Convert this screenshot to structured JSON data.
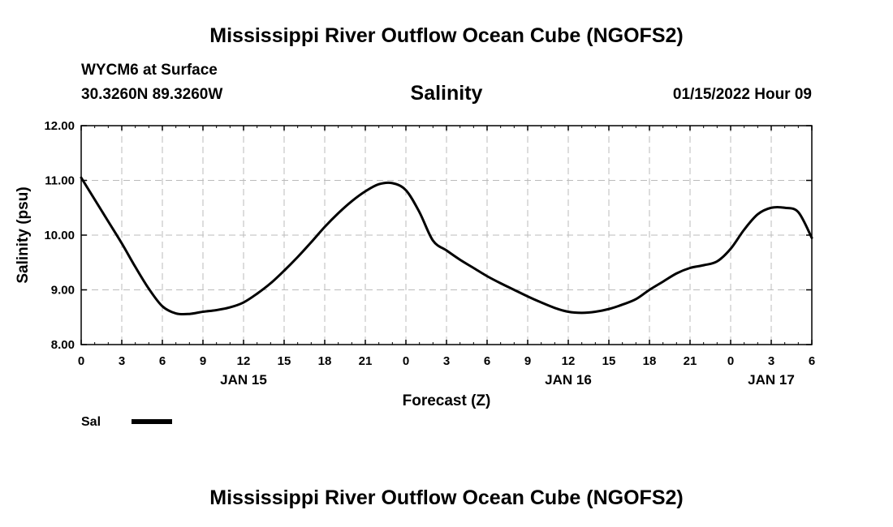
{
  "header": {
    "title": "Mississippi River Outflow Ocean Cube (NGOFS2)",
    "station": "WYCM6 at Surface",
    "coords": "30.3260N  89.3260W",
    "variable": "Salinity",
    "datetime": "01/15/2022 Hour 09"
  },
  "footer": {
    "title": "Mississippi River Outflow Ocean Cube (NGOFS2)"
  },
  "legend": {
    "label": "Sal"
  },
  "colors": {
    "line": "#000000",
    "grid": "#bbbbbb"
  },
  "chart_data": {
    "type": "line",
    "title": "Salinity",
    "xlabel": "Forecast (Z)",
    "ylabel": "Salinity (psu)",
    "xlim": [
      0,
      54
    ],
    "ylim": [
      8.0,
      12.0
    ],
    "grid": true,
    "y_ticks": [
      8.0,
      9.0,
      10.0,
      11.0,
      12.0
    ],
    "y_tick_labels": [
      "8.00",
      "9.00",
      "10.00",
      "11.00",
      "12.00"
    ],
    "x_ticks": [
      0,
      3,
      6,
      9,
      12,
      15,
      18,
      21,
      24,
      27,
      30,
      33,
      36,
      39,
      42,
      45,
      48,
      51,
      54
    ],
    "x_tick_labels": [
      "0",
      "3",
      "6",
      "9",
      "12",
      "15",
      "18",
      "21",
      "0",
      "3",
      "6",
      "9",
      "12",
      "15",
      "18",
      "21",
      "0",
      "3",
      "6"
    ],
    "date_labels": [
      {
        "x": 12,
        "label": "JAN 15"
      },
      {
        "x": 36,
        "label": "JAN 16"
      },
      {
        "x": 51,
        "label": "JAN 17"
      }
    ],
    "series": [
      {
        "name": "Sal",
        "x": [
          0,
          1,
          2,
          3,
          4,
          5,
          6,
          7,
          8,
          9,
          10,
          11,
          12,
          13,
          14,
          15,
          16,
          17,
          18,
          19,
          20,
          21,
          22,
          23,
          24,
          25,
          26,
          27,
          28,
          29,
          30,
          31,
          32,
          33,
          34,
          35,
          36,
          37,
          38,
          39,
          40,
          41,
          42,
          43,
          44,
          45,
          46,
          47,
          48,
          49,
          50,
          51,
          52,
          53,
          54
        ],
        "values": [
          11.05,
          10.65,
          10.25,
          9.85,
          9.42,
          9.02,
          8.7,
          8.57,
          8.56,
          8.6,
          8.63,
          8.68,
          8.77,
          8.93,
          9.12,
          9.35,
          9.6,
          9.87,
          10.15,
          10.4,
          10.62,
          10.8,
          10.93,
          10.95,
          10.82,
          10.42,
          9.9,
          9.72,
          9.55,
          9.4,
          9.25,
          9.12,
          9.0,
          8.88,
          8.77,
          8.67,
          8.6,
          8.58,
          8.6,
          8.65,
          8.73,
          8.83,
          9.0,
          9.15,
          9.3,
          9.4,
          9.45,
          9.52,
          9.75,
          10.1,
          10.38,
          10.5,
          10.5,
          10.42,
          9.95
        ]
      }
    ]
  }
}
